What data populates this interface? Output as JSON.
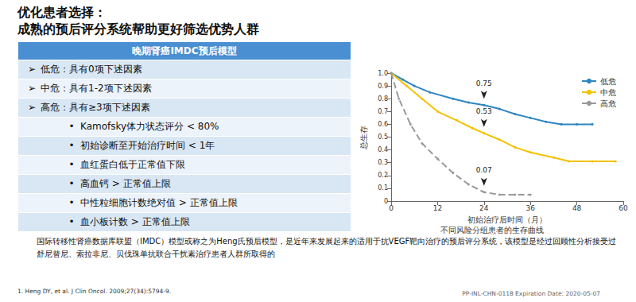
{
  "header": {
    "title": [
      "优化患者选择：",
      "成熟的预后评分系统帮助更好筛选优势人群"
    ]
  },
  "table": {
    "title": "晚期肾癌IMDC预后模型",
    "rows": [
      {
        "kind": "criterion",
        "bullet": "➢",
        "text": "低危：具有0项下述因素"
      },
      {
        "kind": "criterion",
        "bullet": "➢",
        "text": "中危：具有1-2项下述因素"
      },
      {
        "kind": "criterion",
        "bullet": "➢",
        "text": "高危：具有≥3项下述因素"
      },
      {
        "kind": "factor",
        "bullet": "•",
        "text": "Kamofsky体力状态评分 < 80%"
      },
      {
        "kind": "factor",
        "bullet": "•",
        "text": "初始诊断至开始治疗时间 < 1年"
      },
      {
        "kind": "factor",
        "bullet": "•",
        "text": "血红蛋白低于正常值下限"
      },
      {
        "kind": "factor",
        "bullet": "•",
        "text": "高血钙 > 正常值上限"
      },
      {
        "kind": "factor",
        "bullet": "•",
        "text": "中性粒细胞计数绝对值 > 正常值上限"
      },
      {
        "kind": "factor",
        "bullet": "•",
        "text": "血小板计数 > 正常值上限"
      }
    ]
  },
  "chart_data": {
    "type": "line",
    "caption": "不同风险分组患者的生存曲线",
    "x_label": "初始治疗后时间（月）",
    "y_label": "总生存",
    "xlim": [
      0,
      60
    ],
    "xticks": [
      0,
      12,
      24,
      36,
      48,
      60
    ],
    "ylim": [
      0,
      1
    ],
    "yticks": [
      0,
      0.1,
      0.2,
      0.3,
      0.4,
      0.5,
      0.6,
      0.7,
      0.8,
      0.9,
      {
        "value": 1,
        "label": "1.0"
      }
    ],
    "grid": false,
    "legend": "top-right",
    "series": [
      {
        "name": "低危",
        "color": "#2e86c1",
        "line_style": "solid",
        "marker": "circle",
        "x": [
          0,
          3,
          6,
          10,
          16,
          20,
          24,
          28,
          32,
          36,
          40,
          44,
          48,
          52
        ],
        "values": [
          1.0,
          0.95,
          0.9,
          0.85,
          0.8,
          0.77,
          0.75,
          0.72,
          0.68,
          0.65,
          0.62,
          0.6,
          0.6,
          0.6
        ]
      },
      {
        "name": "中危",
        "color": "#f2c200",
        "line_style": "solid",
        "marker": "circle",
        "x": [
          0,
          4,
          8,
          12,
          17,
          21,
          24,
          28,
          32,
          36,
          42,
          46,
          52,
          58
        ],
        "values": [
          1.0,
          0.9,
          0.8,
          0.7,
          0.63,
          0.57,
          0.53,
          0.48,
          0.42,
          0.38,
          0.34,
          0.31,
          0.31,
          0.31
        ]
      },
      {
        "name": "高危",
        "color": "#999999",
        "line_style": "dashed",
        "marker": "circle",
        "x": [
          0,
          2,
          5,
          8,
          12,
          16,
          20,
          24,
          28,
          32,
          36
        ],
        "values": [
          1.0,
          0.8,
          0.6,
          0.45,
          0.33,
          0.22,
          0.13,
          0.07,
          0.05,
          0.05,
          0.05
        ]
      }
    ],
    "annotations": [
      {
        "text": "0.75",
        "x": 24,
        "y": 0.75
      },
      {
        "text": "0.53",
        "x": 24,
        "y": 0.53
      },
      {
        "text": "0.07",
        "x": 24,
        "y": 0.07
      }
    ]
  },
  "footnote": "国际转移性肾癌数据库联盟（IMDC）模型或称之为Heng氏预后模型，是近年来发展起来的适用于抗VEGF靶向治疗的预后评分系统，该模型是经过回顾性分析接受过舒尼替尼、索拉非尼、贝伐珠单抗联合干扰素治疗患者人群所取得的",
  "reference": "1.   Heng DY, et al. J Clin Oncol. 2009;27(34):5794-9.",
  "footer": "PP-INL-CHN-0118 Expiration Date: 2020-05-07"
}
